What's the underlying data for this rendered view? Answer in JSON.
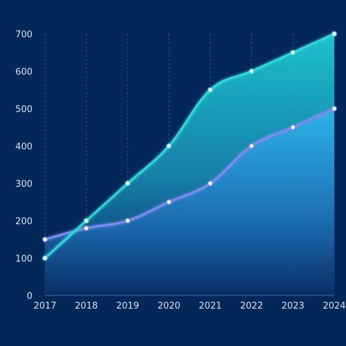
{
  "chart_data": {
    "type": "area",
    "x": [
      "2017",
      "2018",
      "2019",
      "2020",
      "2021",
      "2022",
      "2023",
      "2024"
    ],
    "series": [
      {
        "values": [
          100,
          200,
          300,
          400,
          550,
          600,
          650,
          700
        ]
      },
      {
        "values": [
          150,
          180,
          200,
          250,
          300,
          400,
          450,
          500
        ]
      }
    ],
    "ylim": [
      0,
      700
    ],
    "yticks": [
      0,
      100,
      200,
      300,
      400,
      500,
      600,
      700
    ],
    "grid": "vertical-dashed",
    "title": "",
    "xlabel": "",
    "ylabel": ""
  },
  "colors": {
    "background": "#04275a",
    "series_line_1": "#2fd6d4",
    "series_line_2": "#7a8cf0",
    "area_1_top": "#22c8d6",
    "area_2_top": "#2aa9e0",
    "point_fill": "#ffffff",
    "tick_text": "#d6e2f3",
    "grid": "#3a5c8c"
  }
}
